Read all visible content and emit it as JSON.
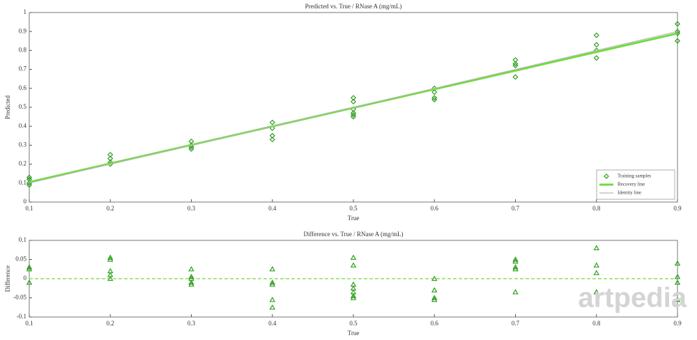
{
  "chart_data": [
    {
      "type": "scatter",
      "title": "Predicted vs. True / RNase A (mg/mL)",
      "xlabel": "True",
      "ylabel": "Predicted",
      "xlim": [
        0.1,
        0.9
      ],
      "ylim": [
        0,
        1
      ],
      "xticks": [
        0.1,
        0.2,
        0.3,
        0.4,
        0.5,
        0.6,
        0.7,
        0.8,
        0.9
      ],
      "yticks": [
        0,
        0.1,
        0.2,
        0.3,
        0.4,
        0.5,
        0.6,
        0.7,
        0.8,
        0.9,
        1
      ],
      "legend": "lower right",
      "series": [
        {
          "name": "Training samples",
          "color": "#2e9e1e",
          "marker": "diamond",
          "x": [
            0.1,
            0.1,
            0.1,
            0.1,
            0.2,
            0.2,
            0.2,
            0.2,
            0.3,
            0.3,
            0.3,
            0.3,
            0.4,
            0.4,
            0.4,
            0.4,
            0.5,
            0.5,
            0.5,
            0.5,
            0.5,
            0.5,
            0.6,
            0.6,
            0.6,
            0.6,
            0.7,
            0.7,
            0.7,
            0.7,
            0.8,
            0.8,
            0.8,
            0.8,
            0.9,
            0.9,
            0.9,
            0.9
          ],
          "values": [
            0.13,
            0.12,
            0.09,
            0.1,
            0.25,
            0.23,
            0.21,
            0.2,
            0.32,
            0.3,
            0.29,
            0.28,
            0.42,
            0.39,
            0.35,
            0.33,
            0.55,
            0.53,
            0.49,
            0.47,
            0.46,
            0.45,
            0.6,
            0.58,
            0.55,
            0.54,
            0.75,
            0.73,
            0.72,
            0.66,
            0.88,
            0.83,
            0.8,
            0.76,
            0.94,
            0.9,
            0.89,
            0.85
          ]
        },
        {
          "name": "Recovery line",
          "color": "#6fdc3c",
          "marker": "line",
          "x": [
            0.1,
            0.9
          ],
          "values": [
            0.105,
            0.89
          ]
        },
        {
          "name": "Identity line",
          "color": "#b8b8b8",
          "marker": "thinline",
          "x": [
            0.1,
            0.9
          ],
          "values": [
            0.1,
            0.9
          ]
        }
      ]
    },
    {
      "type": "scatter",
      "title": "Difference vs. True / RNase A (mg/mL)",
      "xlabel": "True",
      "ylabel": "Difference",
      "xlim": [
        0.1,
        0.9
      ],
      "ylim": [
        -0.1,
        0.1
      ],
      "xticks": [
        0.1,
        0.2,
        0.3,
        0.4,
        0.5,
        0.6,
        0.7,
        0.8,
        0.9
      ],
      "yticks": [
        -0.1,
        -0.05,
        0,
        0.05,
        0.1
      ],
      "series": [
        {
          "color": "#6fdc3c",
          "marker": "dashed",
          "x": [
            0.1,
            0.9
          ],
          "values": [
            0,
            0
          ]
        },
        {
          "color": "#2e9e1e",
          "marker": "triangle",
          "x": [
            0.1,
            0.1,
            0.1,
            0.2,
            0.2,
            0.2,
            0.2,
            0.2,
            0.3,
            0.3,
            0.3,
            0.3,
            0.3,
            0.4,
            0.4,
            0.4,
            0.4,
            0.4,
            0.5,
            0.5,
            0.5,
            0.5,
            0.5,
            0.5,
            0.5,
            0.6,
            0.6,
            0.6,
            0.6,
            0.7,
            0.7,
            0.7,
            0.7,
            0.7,
            0.8,
            0.8,
            0.8,
            0.8,
            0.9,
            0.9,
            0.9,
            0.9
          ],
          "values": [
            0.03,
            0.025,
            -0.01,
            0.055,
            0.05,
            0.02,
            0.01,
            0,
            0.025,
            0.005,
            0,
            -0.01,
            -0.015,
            0.025,
            -0.01,
            -0.015,
            -0.055,
            -0.075,
            0.055,
            0.035,
            -0.015,
            -0.025,
            -0.035,
            -0.045,
            -0.05,
            0,
            -0.03,
            -0.05,
            -0.055,
            0.05,
            0.045,
            0.03,
            0.025,
            -0.035,
            0.08,
            0.035,
            0.015,
            -0.035,
            0.04,
            0.005,
            -0.01,
            -0.055
          ]
        }
      ]
    }
  ],
  "watermark": "artpedia"
}
